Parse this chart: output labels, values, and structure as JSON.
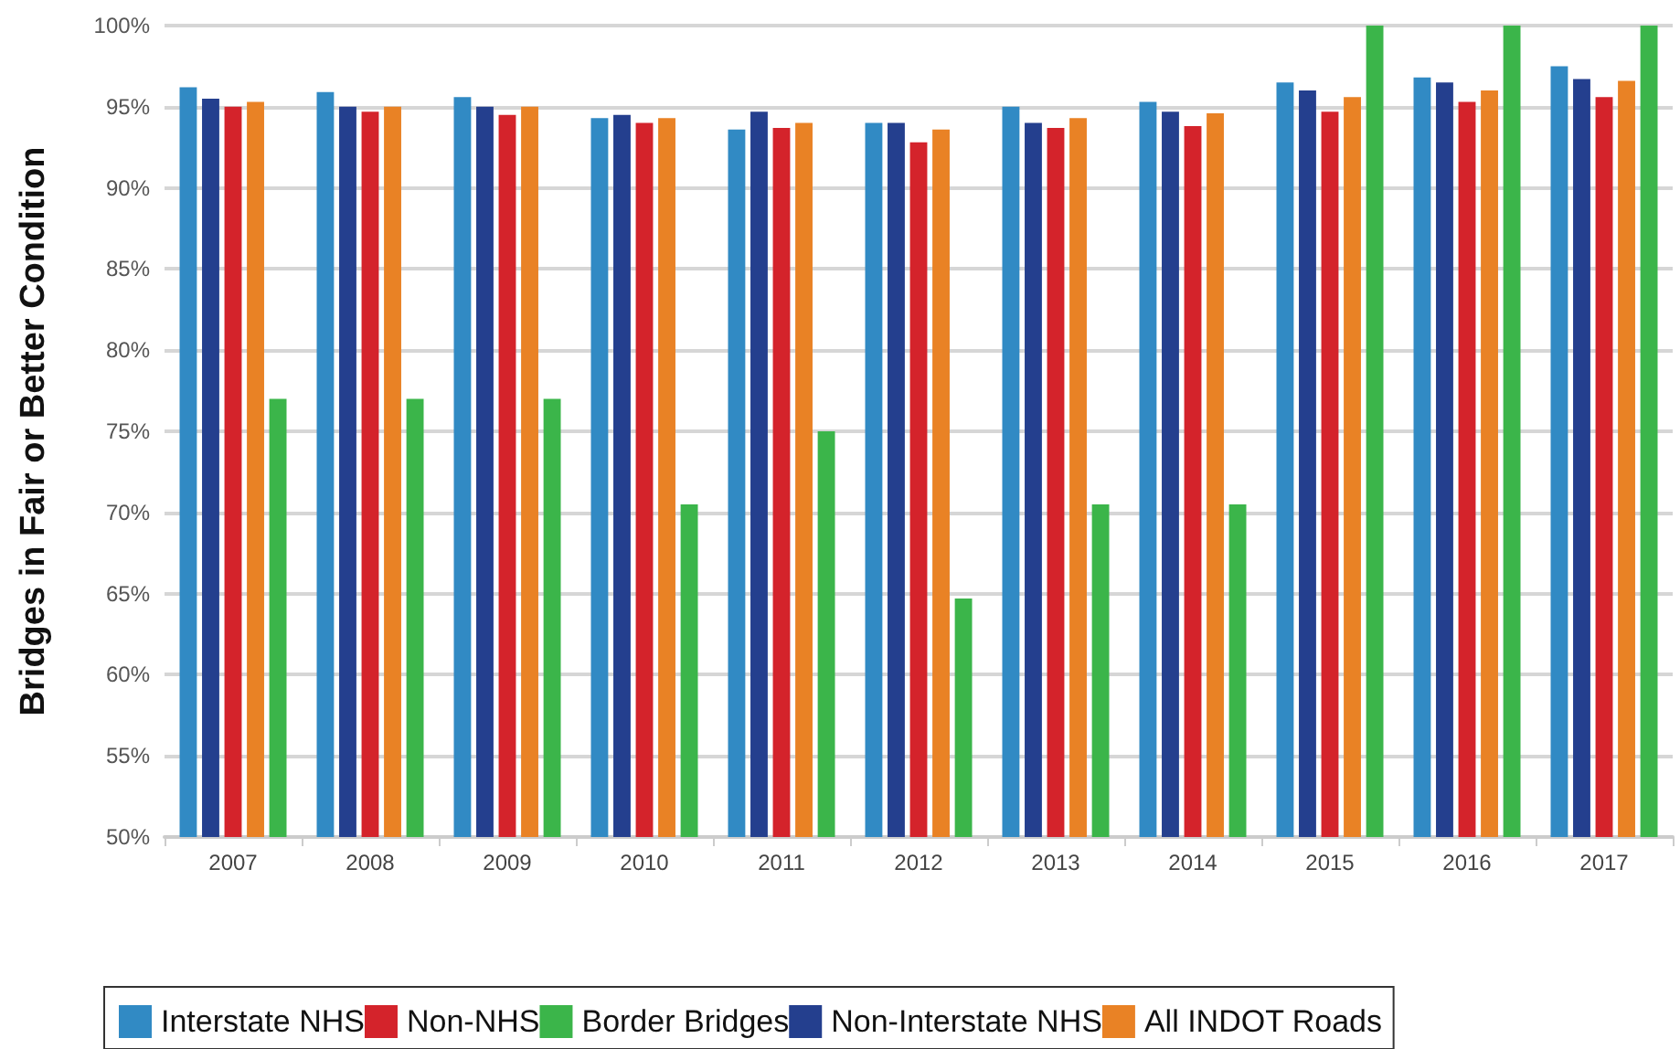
{
  "chart_data": {
    "type": "bar",
    "ylabel": "Bridges in Fair or Better Condition",
    "categories": [
      "2007",
      "2008",
      "2009",
      "2010",
      "2011",
      "2012",
      "2013",
      "2014",
      "2015",
      "2016",
      "2017"
    ],
    "series": [
      {
        "name": "Interstate NHS",
        "color": "#318ac4",
        "values": [
          96.2,
          95.9,
          95.6,
          94.3,
          93.6,
          94.0,
          95.0,
          95.3,
          96.5,
          96.8,
          97.5
        ]
      },
      {
        "name": "Non-Interstate NHS",
        "color": "#243f8e",
        "values": [
          95.5,
          95.0,
          95.0,
          94.5,
          94.7,
          94.0,
          94.0,
          94.7,
          96.0,
          96.5,
          96.7
        ]
      },
      {
        "name": "Non-NHS",
        "color": "#d4232b",
        "values": [
          95.0,
          94.7,
          94.5,
          94.0,
          93.7,
          92.8,
          93.7,
          93.8,
          94.7,
          95.3,
          95.6
        ]
      },
      {
        "name": "All INDOT Roads",
        "color": "#e98225",
        "values": [
          95.3,
          95.0,
          95.0,
          94.3,
          94.0,
          93.6,
          94.3,
          94.6,
          95.6,
          96.0,
          96.6
        ]
      },
      {
        "name": "Border Bridges",
        "color": "#3bb54a",
        "values": [
          77.0,
          77.0,
          77.0,
          70.5,
          75.0,
          64.7,
          70.5,
          70.5,
          100,
          100,
          100
        ]
      }
    ],
    "ylim": [
      50,
      100
    ],
    "yticks": [
      {
        "value": 50,
        "label": "50%"
      },
      {
        "value": 55,
        "label": "55%"
      },
      {
        "value": 60,
        "label": "60%"
      },
      {
        "value": 65,
        "label": "65%"
      },
      {
        "value": 70,
        "label": "70%"
      },
      {
        "value": 75,
        "label": "75%"
      },
      {
        "value": 80,
        "label": "80%"
      },
      {
        "value": 85,
        "label": "85%"
      },
      {
        "value": 90,
        "label": "90%"
      },
      {
        "value": 95,
        "label": "95%"
      },
      {
        "value": 100,
        "label": "100%"
      }
    ],
    "grid": "y",
    "legend": "bottom"
  }
}
